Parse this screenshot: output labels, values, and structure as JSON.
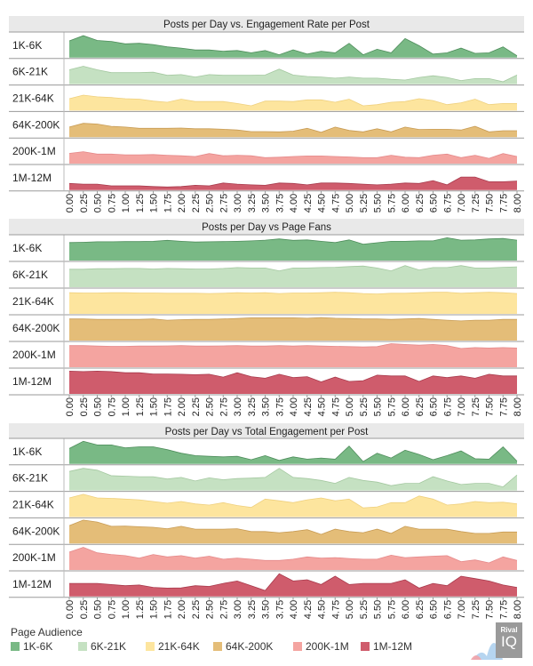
{
  "chart_data": [
    {
      "type": "area",
      "title": "Posts per Day vs. Engagement Rate per Post",
      "x": [
        "0.00",
        "0.25",
        "0.50",
        "0.75",
        "1.00",
        "1.25",
        "1.50",
        "1.75",
        "2.00",
        "2.25",
        "2.50",
        "2.75",
        "3.00",
        "3.25",
        "3.50",
        "3.75",
        "4.00",
        "4.25",
        "4.50",
        "4.75",
        "5.00",
        "5.25",
        "5.50",
        "5.75",
        "6.00",
        "6.25",
        "6.50",
        "6.75",
        "7.00",
        "7.25",
        "7.50",
        "7.75",
        "8.00"
      ],
      "y_unit": "relative (0-1 of row scale)",
      "series": [
        {
          "name": "1K-6K",
          "values": [
            0.7,
            0.92,
            0.72,
            0.68,
            0.58,
            0.6,
            0.55,
            0.45,
            0.4,
            0.32,
            0.32,
            0.27,
            0.3,
            0.2,
            0.3,
            0.12,
            0.33,
            0.15,
            0.27,
            0.2,
            0.6,
            0.12,
            0.35,
            0.2,
            0.8,
            0.5,
            0.15,
            0.2,
            0.4,
            0.18,
            0.2,
            0.45,
            0.08
          ]
        },
        {
          "name": "6K-21K",
          "values": [
            0.6,
            0.75,
            0.6,
            0.48,
            0.48,
            0.48,
            0.5,
            0.37,
            0.4,
            0.3,
            0.4,
            0.37,
            0.37,
            0.37,
            0.38,
            0.63,
            0.38,
            0.32,
            0.3,
            0.25,
            0.3,
            0.25,
            0.25,
            0.2,
            0.17,
            0.28,
            0.35,
            0.28,
            0.15,
            0.23,
            0.23,
            0.1,
            0.38
          ]
        },
        {
          "name": "21K-64K",
          "values": [
            0.5,
            0.65,
            0.58,
            0.55,
            0.5,
            0.48,
            0.4,
            0.35,
            0.48,
            0.38,
            0.38,
            0.38,
            0.3,
            0.2,
            0.4,
            0.4,
            0.38,
            0.45,
            0.45,
            0.35,
            0.48,
            0.2,
            0.25,
            0.35,
            0.38,
            0.5,
            0.42,
            0.25,
            0.33,
            0.48,
            0.25,
            0.3,
            0.3
          ]
        },
        {
          "name": "64K-200K",
          "values": [
            0.42,
            0.58,
            0.55,
            0.45,
            0.42,
            0.37,
            0.37,
            0.37,
            0.38,
            0.35,
            0.35,
            0.33,
            0.3,
            0.23,
            0.23,
            0.22,
            0.25,
            0.37,
            0.2,
            0.42,
            0.28,
            0.22,
            0.35,
            0.22,
            0.42,
            0.32,
            0.33,
            0.33,
            0.3,
            0.45,
            0.22,
            0.27,
            0.27
          ]
        },
        {
          "name": "200K-1M",
          "values": [
            0.43,
            0.5,
            0.4,
            0.4,
            0.37,
            0.37,
            0.38,
            0.35,
            0.33,
            0.3,
            0.42,
            0.33,
            0.35,
            0.33,
            0.25,
            0.27,
            0.3,
            0.32,
            0.32,
            0.3,
            0.28,
            0.25,
            0.25,
            0.35,
            0.27,
            0.25,
            0.35,
            0.4,
            0.25,
            0.35,
            0.22,
            0.42,
            0.3
          ]
        },
        {
          "name": "1M-12M",
          "values": [
            0.28,
            0.25,
            0.25,
            0.18,
            0.18,
            0.18,
            0.15,
            0.13,
            0.15,
            0.2,
            0.18,
            0.3,
            0.25,
            0.22,
            0.2,
            0.3,
            0.28,
            0.22,
            0.3,
            0.3,
            0.28,
            0.25,
            0.22,
            0.25,
            0.3,
            0.28,
            0.4,
            0.22,
            0.55,
            0.55,
            0.35,
            0.35,
            0.38
          ]
        }
      ]
    },
    {
      "type": "area",
      "title": "Posts per Day vs Page Fans",
      "x": [
        "0.00",
        "0.25",
        "0.50",
        "0.75",
        "1.00",
        "1.25",
        "1.50",
        "1.75",
        "2.00",
        "2.25",
        "2.50",
        "2.75",
        "3.00",
        "3.25",
        "3.50",
        "3.75",
        "4.00",
        "4.25",
        "4.50",
        "4.75",
        "5.00",
        "5.25",
        "5.50",
        "5.75",
        "6.00",
        "6.25",
        "6.50",
        "6.75",
        "7.00",
        "7.25",
        "7.50",
        "7.75",
        "8.00"
      ],
      "y_unit": "relative (0-1 of row scale)",
      "series": [
        {
          "name": "1K-6K",
          "values": [
            0.75,
            0.76,
            0.78,
            0.78,
            0.79,
            0.79,
            0.8,
            0.84,
            0.8,
            0.77,
            0.78,
            0.79,
            0.8,
            0.82,
            0.85,
            0.9,
            0.84,
            0.86,
            0.8,
            0.75,
            0.86,
            0.68,
            0.74,
            0.8,
            0.8,
            0.82,
            0.82,
            0.95,
            0.85,
            0.86,
            0.9,
            0.92,
            0.85
          ]
        },
        {
          "name": "6K-21K",
          "values": [
            0.75,
            0.75,
            0.77,
            0.77,
            0.78,
            0.78,
            0.76,
            0.78,
            0.77,
            0.76,
            0.76,
            0.78,
            0.82,
            0.8,
            0.8,
            0.68,
            0.8,
            0.8,
            0.82,
            0.83,
            0.86,
            0.88,
            0.8,
            0.68,
            0.9,
            0.72,
            0.82,
            0.82,
            0.9,
            0.8,
            0.8,
            0.83,
            0.85
          ]
        },
        {
          "name": "21K-64K",
          "values": [
            0.88,
            0.87,
            0.87,
            0.88,
            0.88,
            0.87,
            0.87,
            0.86,
            0.86,
            0.86,
            0.85,
            0.86,
            0.88,
            0.87,
            0.88,
            0.85,
            0.87,
            0.87,
            0.88,
            0.9,
            0.88,
            0.85,
            0.83,
            0.86,
            0.86,
            0.88,
            0.9,
            0.9,
            0.86,
            0.88,
            0.9,
            0.88,
            0.85
          ]
        },
        {
          "name": "64K-200K",
          "values": [
            0.9,
            0.9,
            0.88,
            0.88,
            0.88,
            0.88,
            0.9,
            0.85,
            0.87,
            0.88,
            0.88,
            0.9,
            0.92,
            0.95,
            0.95,
            0.95,
            0.95,
            0.93,
            0.96,
            0.93,
            0.92,
            0.9,
            0.9,
            0.88,
            0.9,
            0.92,
            0.88,
            0.85,
            0.82,
            0.85,
            0.85,
            0.88,
            0.88
          ]
        },
        {
          "name": "200K-1M",
          "values": [
            0.9,
            0.9,
            0.88,
            0.87,
            0.87,
            0.88,
            0.88,
            0.89,
            0.9,
            0.88,
            0.88,
            0.89,
            0.9,
            0.88,
            0.88,
            0.9,
            0.88,
            0.9,
            0.88,
            0.87,
            0.86,
            0.85,
            0.86,
            0.98,
            0.95,
            0.92,
            0.95,
            0.9,
            0.78,
            0.82,
            0.8,
            0.82,
            0.8
          ]
        },
        {
          "name": "1M-12M",
          "values": [
            0.95,
            0.93,
            0.95,
            0.93,
            0.88,
            0.88,
            0.83,
            0.83,
            0.82,
            0.8,
            0.82,
            0.7,
            0.88,
            0.72,
            0.65,
            0.82,
            0.68,
            0.72,
            0.5,
            0.7,
            0.52,
            0.55,
            0.78,
            0.75,
            0.75,
            0.52,
            0.75,
            0.68,
            0.75,
            0.65,
            0.82,
            0.75,
            0.75
          ]
        }
      ]
    },
    {
      "type": "area",
      "title": "Posts per Day vs Total Engagement per Post",
      "x": [
        "0.00",
        "0.25",
        "0.50",
        "0.75",
        "1.00",
        "1.25",
        "1.50",
        "1.75",
        "2.00",
        "2.25",
        "2.50",
        "2.75",
        "3.00",
        "3.25",
        "3.50",
        "3.75",
        "4.00",
        "4.25",
        "4.50",
        "4.75",
        "5.00",
        "5.25",
        "5.50",
        "5.75",
        "6.00",
        "6.25",
        "6.50",
        "6.75",
        "7.00",
        "7.25",
        "7.50",
        "7.75",
        "8.00"
      ],
      "y_unit": "relative (0-1 of row scale)",
      "series": [
        {
          "name": "1K-6K",
          "values": [
            0.65,
            0.95,
            0.8,
            0.8,
            0.68,
            0.72,
            0.72,
            0.6,
            0.45,
            0.35,
            0.32,
            0.3,
            0.32,
            0.18,
            0.35,
            0.15,
            0.3,
            0.2,
            0.25,
            0.2,
            0.75,
            0.1,
            0.45,
            0.25,
            0.58,
            0.4,
            0.18,
            0.35,
            0.55,
            0.22,
            0.2,
            0.72,
            0.12
          ]
        },
        {
          "name": "6K-21K",
          "values": [
            0.8,
            0.93,
            0.85,
            0.62,
            0.6,
            0.58,
            0.58,
            0.48,
            0.55,
            0.4,
            0.53,
            0.45,
            0.5,
            0.52,
            0.55,
            0.93,
            0.55,
            0.5,
            0.42,
            0.3,
            0.55,
            0.42,
            0.35,
            0.2,
            0.3,
            0.3,
            0.58,
            0.4,
            0.25,
            0.3,
            0.3,
            0.15,
            0.65
          ]
        },
        {
          "name": "21K-64K",
          "values": [
            0.8,
            0.95,
            0.8,
            0.78,
            0.75,
            0.72,
            0.65,
            0.58,
            0.65,
            0.55,
            0.5,
            0.6,
            0.48,
            0.4,
            0.75,
            0.68,
            0.6,
            0.72,
            0.8,
            0.68,
            0.75,
            0.38,
            0.42,
            0.6,
            0.6,
            0.88,
            0.75,
            0.5,
            0.55,
            0.65,
            0.6,
            0.62,
            0.55
          ]
        },
        {
          "name": "64K-200K",
          "values": [
            0.75,
            0.98,
            0.9,
            0.72,
            0.73,
            0.7,
            0.68,
            0.62,
            0.72,
            0.6,
            0.6,
            0.6,
            0.62,
            0.5,
            0.5,
            0.45,
            0.5,
            0.58,
            0.38,
            0.6,
            0.5,
            0.45,
            0.6,
            0.42,
            0.72,
            0.6,
            0.6,
            0.6,
            0.5,
            0.42,
            0.42,
            0.48,
            0.48
          ]
        },
        {
          "name": "200K-1M",
          "values": [
            0.75,
            0.95,
            0.72,
            0.65,
            0.6,
            0.5,
            0.65,
            0.55,
            0.6,
            0.5,
            0.58,
            0.45,
            0.5,
            0.45,
            0.4,
            0.4,
            0.45,
            0.55,
            0.5,
            0.52,
            0.48,
            0.45,
            0.45,
            0.62,
            0.52,
            0.55,
            0.58,
            0.6,
            0.35,
            0.42,
            0.3,
            0.55,
            0.4
          ]
        },
        {
          "name": "1M-12M",
          "values": [
            0.55,
            0.55,
            0.55,
            0.5,
            0.45,
            0.48,
            0.38,
            0.35,
            0.36,
            0.45,
            0.42,
            0.55,
            0.65,
            0.45,
            0.25,
            0.95,
            0.65,
            0.7,
            0.5,
            0.85,
            0.5,
            0.55,
            0.55,
            0.55,
            0.7,
            0.35,
            0.55,
            0.45,
            0.85,
            0.75,
            0.65,
            0.48,
            0.38
          ]
        }
      ]
    }
  ],
  "colors": {
    "1K-6K": {
      "fill": "#79b985",
      "stroke": "#4e8d5b"
    },
    "6K-21K": {
      "fill": "#c5e1c2",
      "stroke": "#a4c8a0"
    },
    "21K-64K": {
      "fill": "#fde59e",
      "stroke": "#efd07e"
    },
    "64K-200K": {
      "fill": "#e4bd78",
      "stroke": "#c89c55"
    },
    "200K-1M": {
      "fill": "#f4a4a0",
      "stroke": "#e5898a"
    },
    "1M-12M": {
      "fill": "#cf5c6c",
      "stroke": "#a83a4c"
    }
  },
  "legend": {
    "title": "Page Audience",
    "items": [
      "1K-6K",
      "6K-21K",
      "21K-64K",
      "64K-200K",
      "200K-1M",
      "1M-12M"
    ]
  },
  "logo": {
    "line1": "Rival",
    "line2": "IQ"
  }
}
